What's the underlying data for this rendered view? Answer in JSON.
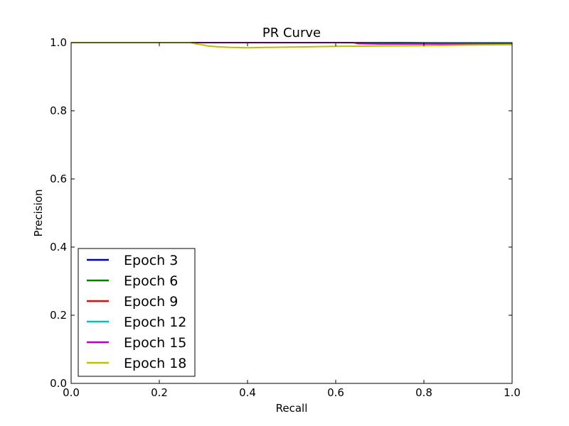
{
  "chart_data": {
    "type": "line",
    "title": "PR Curve",
    "xlabel": "Recall",
    "ylabel": "Precision",
    "xlim": [
      0.0,
      1.0
    ],
    "ylim": [
      0.0,
      1.0
    ],
    "xticks": [
      "0.0",
      "0.2",
      "0.4",
      "0.6",
      "0.8",
      "1.0"
    ],
    "yticks": [
      "0.0",
      "0.2",
      "0.4",
      "0.6",
      "0.8",
      "1.0"
    ],
    "grid": false,
    "legend_position": "lower-left",
    "series": [
      {
        "name": "Epoch 3",
        "color": "#0000bf",
        "x": [
          0.0,
          0.6,
          0.8,
          0.9,
          1.0
        ],
        "y": [
          1.0,
          1.0,
          0.999,
          0.999,
          0.999
        ]
      },
      {
        "name": "Epoch 6",
        "color": "#007f00",
        "x": [
          0.0,
          0.6,
          0.8,
          0.9,
          1.0
        ],
        "y": [
          1.0,
          1.0,
          0.999,
          0.998,
          0.998
        ]
      },
      {
        "name": "Epoch 9",
        "color": "#ff0000",
        "x": [
          0.0,
          0.65,
          0.8,
          0.9,
          1.0
        ],
        "y": [
          1.0,
          1.0,
          0.999,
          0.998,
          0.998
        ]
      },
      {
        "name": "Epoch 12",
        "color": "#00bfbf",
        "x": [
          0.0,
          0.7,
          0.84,
          0.88,
          0.92,
          1.0
        ],
        "y": [
          1.0,
          1.0,
          0.999,
          0.997,
          0.997,
          0.997
        ]
      },
      {
        "name": "Epoch 15",
        "color": "#bf00bf",
        "x": [
          0.0,
          0.64,
          0.65,
          0.7,
          0.8,
          0.85,
          1.0
        ],
        "y": [
          1.0,
          1.0,
          0.997,
          0.996,
          0.996,
          0.996,
          0.996
        ]
      },
      {
        "name": "Epoch 18",
        "color": "#bfbf00",
        "x": [
          0.0,
          0.27,
          0.28,
          0.3,
          0.31,
          0.33,
          0.36,
          0.4,
          0.5,
          0.6,
          0.7,
          0.8,
          0.9,
          1.0
        ],
        "y": [
          1.0,
          1.0,
          0.997,
          0.993,
          0.99,
          0.988,
          0.986,
          0.985,
          0.987,
          0.989,
          0.99,
          0.991,
          0.993,
          0.994
        ]
      }
    ]
  }
}
